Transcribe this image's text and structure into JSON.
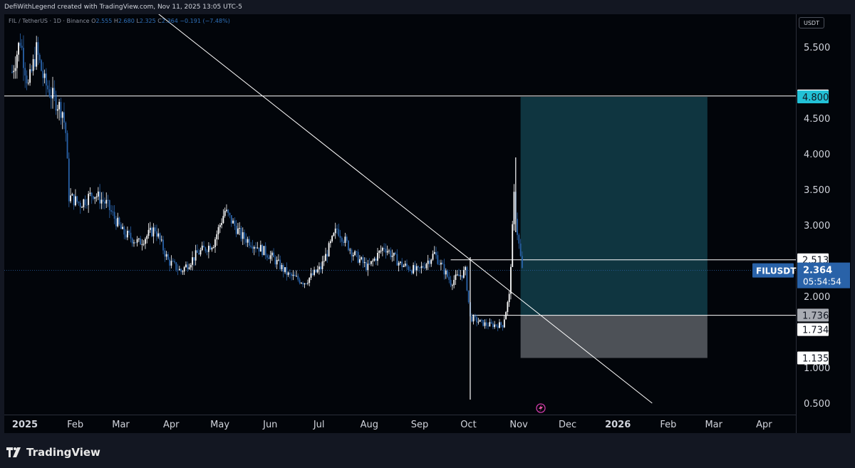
{
  "header": {
    "attribution": "DefiWithLegend created with TradingView.com, Nov 11, 2025 13:05 UTC-5"
  },
  "legend": {
    "symbol": "FIL / TetherUS · 1D · Binance",
    "o_label": "O",
    "o": "2.555",
    "h_label": "H",
    "h": "2.680",
    "l_label": "L",
    "l": "2.325",
    "c_label": "C",
    "c": "2.364",
    "change": "−0.191 (−7.48%)"
  },
  "currency": "USDT",
  "footer": {
    "brand": "TradingView"
  },
  "colors": {
    "background": "#02050a",
    "candle": "#ffffff",
    "target_zone": "#0f3540",
    "stop_zone": "#4d5157",
    "accent": "#22c1d6",
    "price_badge": "#2962a8"
  },
  "chart_data": {
    "type": "candlestick",
    "symbol": "FILUSDT",
    "ylim": [
      0.4,
      6.0
    ],
    "y_ticks": [
      "5.500",
      "4.500",
      "4.000",
      "3.500",
      "3.000",
      "2.000",
      "1.000",
      "0.500"
    ],
    "x_ticks": [
      "2025",
      "Feb",
      "Mar",
      "Apr",
      "May",
      "Jun",
      "Jul",
      "Aug",
      "Sep",
      "Oct",
      "Nov",
      "Dec",
      "2026",
      "Feb",
      "Mar",
      "Apr"
    ],
    "bold_x_ticks": [
      "2025",
      "2026"
    ],
    "price_path": [
      {
        "date": "2025-01-01",
        "price": 5.15
      },
      {
        "date": "2025-01-06",
        "price": 5.6
      },
      {
        "date": "2025-01-11",
        "price": 4.95
      },
      {
        "date": "2025-01-16",
        "price": 5.45
      },
      {
        "date": "2025-01-21",
        "price": 5.0
      },
      {
        "date": "2025-01-26",
        "price": 4.8
      },
      {
        "date": "2025-02-01",
        "price": 4.6
      },
      {
        "date": "2025-02-03",
        "price": 4.3
      },
      {
        "date": "2025-02-05",
        "price": 3.4
      },
      {
        "date": "2025-02-12",
        "price": 3.3
      },
      {
        "date": "2025-02-20",
        "price": 3.45
      },
      {
        "date": "2025-02-28",
        "price": 3.3
      },
      {
        "date": "2025-03-10",
        "price": 2.9
      },
      {
        "date": "2025-03-20",
        "price": 2.75
      },
      {
        "date": "2025-03-30",
        "price": 2.95
      },
      {
        "date": "2025-04-07",
        "price": 2.5
      },
      {
        "date": "2025-04-15",
        "price": 2.35
      },
      {
        "date": "2025-04-25",
        "price": 2.6
      },
      {
        "date": "2025-05-05",
        "price": 2.75
      },
      {
        "date": "2025-05-12",
        "price": 3.2
      },
      {
        "date": "2025-05-22",
        "price": 2.85
      },
      {
        "date": "2025-06-01",
        "price": 2.7
      },
      {
        "date": "2025-06-10",
        "price": 2.55
      },
      {
        "date": "2025-06-20",
        "price": 2.3
      },
      {
        "date": "2025-06-30",
        "price": 2.2
      },
      {
        "date": "2025-07-10",
        "price": 2.4
      },
      {
        "date": "2025-07-20",
        "price": 2.95
      },
      {
        "date": "2025-07-30",
        "price": 2.6
      },
      {
        "date": "2025-08-08",
        "price": 2.4
      },
      {
        "date": "2025-08-18",
        "price": 2.7
      },
      {
        "date": "2025-08-28",
        "price": 2.45
      },
      {
        "date": "2025-09-08",
        "price": 2.35
      },
      {
        "date": "2025-09-18",
        "price": 2.6
      },
      {
        "date": "2025-09-28",
        "price": 2.2
      },
      {
        "date": "2025-10-07",
        "price": 2.35
      },
      {
        "date": "2025-10-10",
        "price": 1.7
      },
      {
        "date": "2025-10-20",
        "price": 1.6
      },
      {
        "date": "2025-10-30",
        "price": 1.6
      },
      {
        "date": "2025-11-03",
        "price": 2.0
      },
      {
        "date": "2025-11-06",
        "price": 3.4
      },
      {
        "date": "2025-11-08",
        "price": 2.9
      },
      {
        "date": "2025-11-11",
        "price": 2.364
      }
    ],
    "wicks": [
      {
        "date": "2025-10-10",
        "high": 2.55,
        "low": 0.55
      },
      {
        "date": "2025-11-07",
        "high": 3.95,
        "low": 2.9
      }
    ],
    "trendline": {
      "from": {
        "date": "2024-12-20",
        "price": 7.8
      },
      "to": {
        "date": "2026-01-30",
        "price": 0.5
      }
    },
    "horizontal_lines": [
      {
        "price": 4.813,
        "label": "4.813",
        "style": "white"
      },
      {
        "price": 2.513,
        "label": "2.513",
        "style": "white"
      },
      {
        "price": 1.734,
        "label": "1.734",
        "style": "white"
      }
    ],
    "position": {
      "start_date": "2025-11-10",
      "end_date": "2026-03-05",
      "target": 4.8,
      "entry": 1.736,
      "stop": 1.135,
      "target_label": "4.800",
      "entry_label": "1.736",
      "stop_label": "1.135"
    },
    "last_price": {
      "symbol": "FILUSDT",
      "price": "2.364",
      "countdown": "05:54:54",
      "value": 2.364
    }
  }
}
